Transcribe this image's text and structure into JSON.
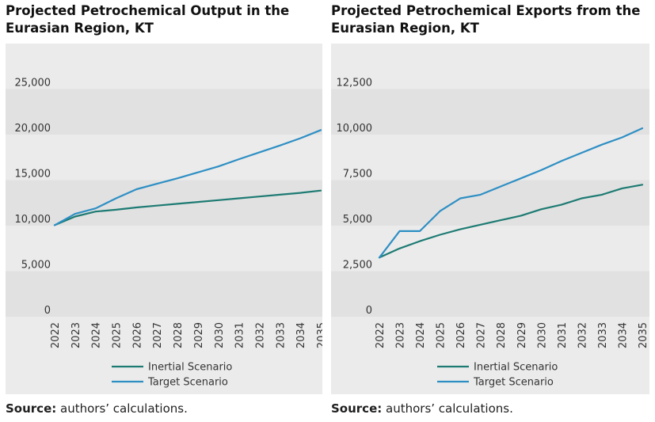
{
  "chart_data": [
    {
      "type": "line",
      "title": "Projected Petrochemical Output in the Eurasian Region, KT",
      "categories": [
        "2022",
        "2023",
        "2024",
        "2025",
        "2026",
        "2027",
        "2028",
        "2029",
        "2030",
        "2031",
        "2032",
        "2033",
        "2034",
        "2035"
      ],
      "y_ticks": [
        "0",
        "5,000",
        "10,000",
        "15,000",
        "20,000",
        "25,000"
      ],
      "ylim": [
        0,
        30000
      ],
      "series": [
        {
          "name": "Inertial Scenario",
          "color": "#1d7b73",
          "values": [
            10050,
            11000,
            11550,
            11750,
            12000,
            12200,
            12400,
            12600,
            12800,
            13000,
            13200,
            13400,
            13600,
            13850
          ]
        },
        {
          "name": "Target Scenario",
          "color": "#2e8fc4",
          "values": [
            10050,
            11300,
            11900,
            13000,
            14000,
            14600,
            15200,
            15850,
            16500,
            17300,
            18050,
            18800,
            19600,
            20500
          ]
        }
      ],
      "source_label": "Source:",
      "source_text": " authors’ calculations."
    },
    {
      "type": "line",
      "title": "Projected Petrochemical Exports from the Eurasian Region, KT",
      "categories": [
        "2022",
        "2023",
        "2024",
        "2025",
        "2026",
        "2027",
        "2028",
        "2029",
        "2030",
        "2031",
        "2032",
        "2033",
        "2034",
        "2035"
      ],
      "y_ticks": [
        "0",
        "2,500",
        "5,000",
        "7,500",
        "10,000",
        "12,500"
      ],
      "ylim": [
        0,
        15000
      ],
      "series": [
        {
          "name": "Inertial Scenario",
          "color": "#1d7b73",
          "values": [
            3250,
            3750,
            4150,
            4500,
            4800,
            5050,
            5300,
            5550,
            5900,
            6150,
            6500,
            6700,
            7050,
            7250
          ]
        },
        {
          "name": "Target Scenario",
          "color": "#2e8fc4",
          "values": [
            3250,
            4700,
            4700,
            5800,
            6500,
            6700,
            7150,
            7600,
            8050,
            8550,
            9000,
            9450,
            9850,
            10350
          ]
        }
      ],
      "source_label": "Source:",
      "source_text": " authors’ calculations."
    }
  ]
}
